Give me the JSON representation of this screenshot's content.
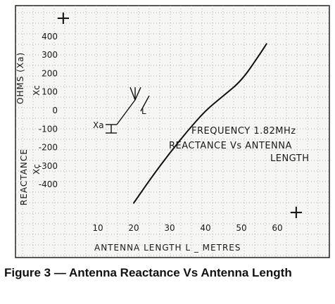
{
  "chart_data": {
    "type": "line",
    "xlabel": "ANTENNA LENGTH L _ METRES",
    "ylabel": "REACTANCE",
    "ylabel_upper": "OHMS (Xa)",
    "ylabel_xc_upper": "Xc",
    "ylabel_xc_lower": "Xc",
    "x_ticks": [
      "10",
      "20",
      "30",
      "40",
      "50",
      "60"
    ],
    "y_ticks": [
      "400",
      "300",
      "200",
      "100",
      "0",
      "-100",
      "-200",
      "-300",
      "-400"
    ],
    "xlim": [
      5,
      65
    ],
    "ylim": [
      -600,
      500
    ],
    "grid": true,
    "series": [
      {
        "x": [
          20,
          25,
          30,
          35,
          40,
          45,
          50,
          55,
          57
        ],
        "y": [
          -500,
          -360,
          -230,
          -110,
          0,
          80,
          160,
          300,
          360
        ]
      }
    ],
    "annotations": [
      "FREQUENCY 1.82MHz",
      "REACTANCE Vs ANTENNA",
      "LENGTH"
    ],
    "symbol_labels": {
      "xa": "Xa",
      "l": "L"
    },
    "plus_marks": [
      "+",
      "+"
    ]
  },
  "caption": "Figure 3 — Antenna Reactance Vs Antenna Length"
}
